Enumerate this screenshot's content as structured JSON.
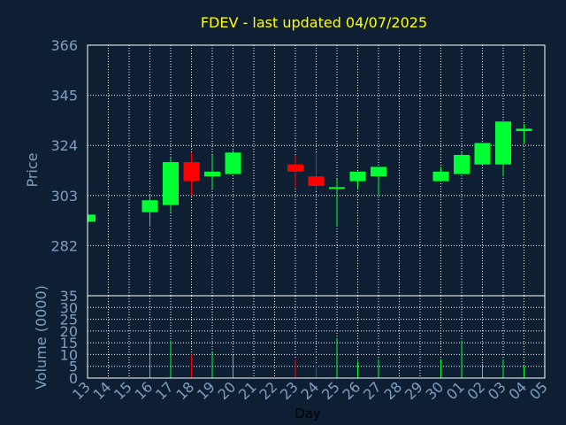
{
  "chart_data": {
    "type": "candlestick",
    "title": "FDEV - last updated 04/07/2025",
    "xlabel": "Day",
    "ylabel": "Price",
    "volume_label": "Volume (0000)",
    "price_ylim": [
      261,
      366
    ],
    "price_ticks": [
      282,
      303,
      324,
      345,
      366
    ],
    "volume_ylim": [
      0,
      35
    ],
    "volume_ticks": [
      0,
      5,
      10,
      15,
      20,
      25,
      30,
      35
    ],
    "grid": true,
    "colors": {
      "background": "#0f1f33",
      "up": "#00ff33",
      "down": "#ff0000",
      "title": "#ffff00",
      "axis_text": "#7f9fc0",
      "frame": "#ffffff",
      "grid": "#ffffff"
    },
    "day_labels": [
      "13",
      "14",
      "15",
      "16",
      "17",
      "18",
      "19",
      "20",
      "21",
      "22",
      "23",
      "24",
      "25",
      "26",
      "27",
      "28",
      "29",
      "30",
      "01",
      "02",
      "03",
      "04",
      "05"
    ],
    "candles": [
      {
        "day": "13",
        "open": 292,
        "close": 295,
        "high": 295,
        "low": 292,
        "volume": 0
      },
      {
        "day": "16",
        "open": 296,
        "close": 301,
        "high": 303,
        "low": 290,
        "volume": 17
      },
      {
        "day": "17",
        "open": 299,
        "close": 317,
        "high": 319,
        "low": 296,
        "volume": 16
      },
      {
        "day": "18",
        "open": 317,
        "close": 309,
        "high": 321,
        "low": 303,
        "volume": 10
      },
      {
        "day": "19",
        "open": 311,
        "close": 313,
        "high": 320,
        "low": 306,
        "volume": 11
      },
      {
        "day": "20",
        "open": 312,
        "close": 321,
        "high": 322,
        "low": 312,
        "volume": 10
      },
      {
        "day": "23",
        "open": 316,
        "close": 313,
        "high": 320,
        "low": 306,
        "volume": 8
      },
      {
        "day": "24",
        "open": 311,
        "close": 307,
        "high": 321,
        "low": 305,
        "volume": 6
      },
      {
        "day": "25",
        "open": 306,
        "close": 306.5,
        "high": 310,
        "low": 290,
        "volume": 17
      },
      {
        "day": "26",
        "open": 309,
        "close": 313,
        "high": 313,
        "low": 306,
        "volume": 7
      },
      {
        "day": "27",
        "open": 311,
        "close": 315,
        "high": 315,
        "low": 303,
        "volume": 8
      },
      {
        "day": "30",
        "open": 309,
        "close": 313,
        "high": 315,
        "low": 309,
        "volume": 8
      },
      {
        "day": "01",
        "open": 312,
        "close": 320,
        "high": 321,
        "low": 312,
        "volume": 16
      },
      {
        "day": "02",
        "open": 316,
        "close": 325,
        "high": 325,
        "low": 316,
        "volume": 6
      },
      {
        "day": "03",
        "open": 316,
        "close": 334,
        "high": 334,
        "low": 311,
        "volume": 8
      },
      {
        "day": "04",
        "open": 330,
        "close": 331,
        "high": 333,
        "low": 325,
        "volume": 5
      }
    ]
  }
}
